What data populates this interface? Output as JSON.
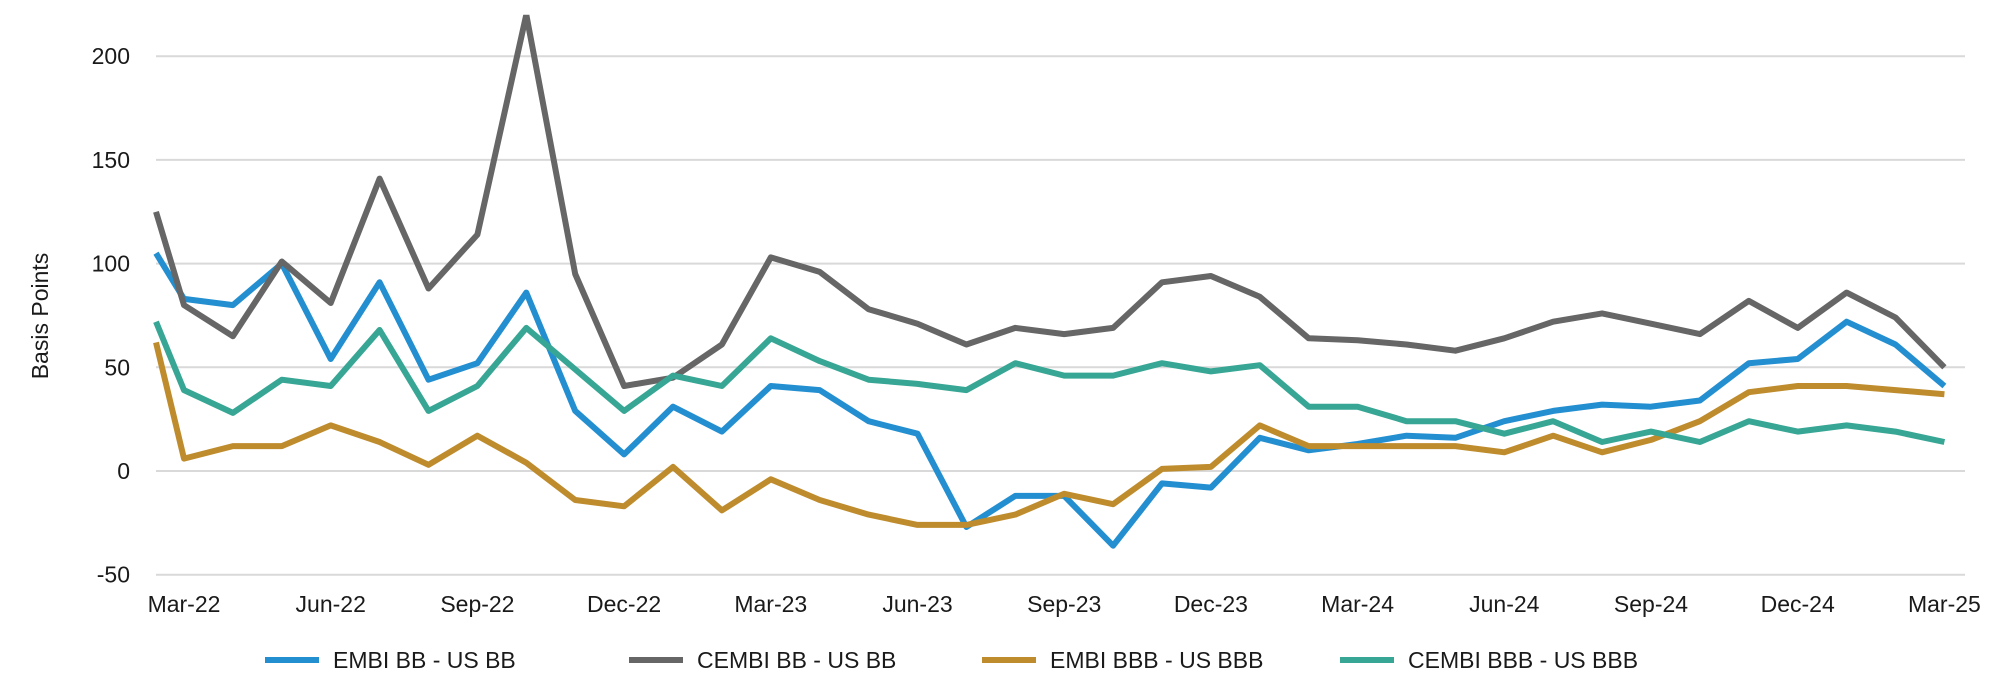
{
  "chart_data": {
    "type": "line",
    "title": "",
    "xlabel": "",
    "ylabel": "Basis Points",
    "ylim": [
      -50,
      220
    ],
    "yticks": [
      -50,
      0,
      50,
      100,
      150,
      200
    ],
    "xtick_labels": [
      "Mar-22",
      "Jun-22",
      "Sep-22",
      "Dec-22",
      "Mar-23",
      "Jun-23",
      "Sep-23",
      "Dec-23",
      "Mar-24",
      "Jun-24",
      "Sep-24",
      "Dec-24",
      "Mar-25"
    ],
    "x": [
      "Feb-22",
      "Mar-22",
      "Apr-22",
      "May-22",
      "Jun-22",
      "Jul-22",
      "Aug-22",
      "Sep-22",
      "Oct-22",
      "Nov-22",
      "Dec-22",
      "Jan-23",
      "Feb-23",
      "Mar-23",
      "Apr-23",
      "May-23",
      "Jun-23",
      "Jul-23",
      "Aug-23",
      "Sep-23",
      "Oct-23",
      "Nov-23",
      "Dec-23",
      "Jan-24",
      "Feb-24",
      "Mar-24",
      "Apr-24",
      "May-24",
      "Jun-24",
      "Jul-24",
      "Aug-24",
      "Sep-24",
      "Oct-24",
      "Nov-24",
      "Dec-24",
      "Jan-25",
      "Feb-25",
      "Mar-25"
    ],
    "grid": true,
    "legend_position": "bottom",
    "series": [
      {
        "name": "EMBI BB - US BB",
        "color": "#238FD0",
        "values": [
          105,
          83,
          80,
          100,
          54,
          91,
          44,
          52,
          86,
          29,
          8,
          31,
          19,
          41,
          39,
          24,
          18,
          -27,
          -12,
          -12,
          -36,
          -6,
          -8,
          16,
          10,
          13,
          17,
          16,
          24,
          29,
          32,
          31,
          34,
          52,
          54,
          72,
          61,
          41
        ]
      },
      {
        "name": "CEMBI BB - US BB",
        "color": "#666666",
        "values": [
          125,
          80,
          65,
          101,
          81,
          141,
          88,
          114,
          220,
          95,
          41,
          45,
          61,
          103,
          96,
          78,
          71,
          61,
          69,
          66,
          69,
          91,
          94,
          84,
          64,
          63,
          61,
          58,
          64,
          72,
          76,
          71,
          66,
          82,
          69,
          86,
          74,
          50
        ]
      },
      {
        "name": "EMBI BBB - US BBB",
        "color": "#BF8C2D",
        "values": [
          62,
          6,
          12,
          12,
          22,
          14,
          3,
          17,
          4,
          -14,
          -17,
          2,
          -19,
          -4,
          -14,
          -21,
          -26,
          -26,
          -21,
          -11,
          -16,
          1,
          2,
          22,
          12,
          12,
          12,
          12,
          9,
          17,
          9,
          15,
          24,
          38,
          41,
          41,
          39,
          37
        ]
      },
      {
        "name": "CEMBI BBB - US BBB",
        "color": "#37A694",
        "values": [
          72,
          39,
          28,
          44,
          41,
          68,
          29,
          41,
          69,
          49,
          29,
          46,
          41,
          64,
          53,
          44,
          42,
          39,
          52,
          46,
          46,
          52,
          48,
          51,
          31,
          31,
          24,
          24,
          18,
          24,
          14,
          19,
          14,
          24,
          19,
          22,
          19,
          14
        ]
      }
    ]
  }
}
